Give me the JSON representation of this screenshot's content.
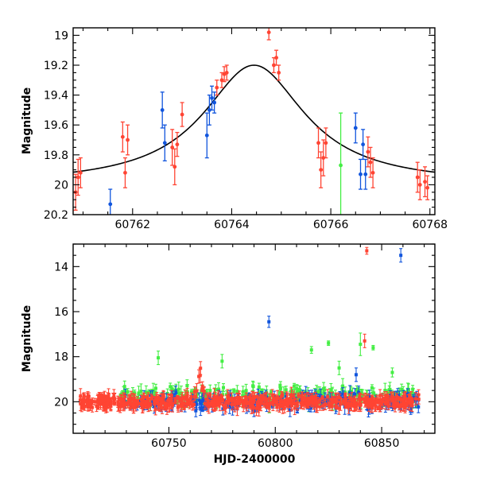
{
  "chart_data": [
    {
      "type": "scatter",
      "title": "",
      "xlabel": "",
      "ylabel": "Magnitude",
      "xlim": [
        60760.8,
        60768.1
      ],
      "ylim": [
        20.2,
        18.95
      ],
      "y_inverted": true,
      "x_ticks": [
        60762,
        60764,
        60766,
        60768
      ],
      "y_ticks": [
        19,
        19.2,
        19.4,
        19.6,
        19.8,
        20,
        20.2
      ],
      "model_curve": {
        "peak_x": 60764.45,
        "peak_mag": 19.2,
        "baseline_mag": 20.0,
        "x": [
          60760.8,
          60761.5,
          60762.0,
          60762.5,
          60763.0,
          60763.5,
          60764.0,
          60764.45,
          60765.0,
          60765.5,
          60766.0,
          60766.5,
          60767.0,
          60767.5,
          60768.1
        ],
        "y": [
          19.955,
          19.925,
          19.885,
          19.81,
          19.7,
          19.545,
          19.33,
          19.2,
          19.3,
          19.48,
          19.66,
          19.79,
          19.87,
          19.92,
          19.955
        ]
      },
      "series": [
        {
          "color": "#ff4433",
          "points": [
            {
              "x": 60760.85,
              "y": 20.05,
              "err": 0.12
            },
            {
              "x": 60760.9,
              "y": 19.95,
              "err": 0.12
            },
            {
              "x": 60760.95,
              "y": 19.92,
              "err": 0.1
            },
            {
              "x": 60761.8,
              "y": 19.68,
              "err": 0.1
            },
            {
              "x": 60761.85,
              "y": 19.92,
              "err": 0.1
            },
            {
              "x": 60761.9,
              "y": 19.7,
              "err": 0.1
            },
            {
              "x": 60762.8,
              "y": 19.75,
              "err": 0.12
            },
            {
              "x": 60762.85,
              "y": 19.88,
              "err": 0.12
            },
            {
              "x": 60762.9,
              "y": 19.73,
              "err": 0.08
            },
            {
              "x": 60763.0,
              "y": 19.53,
              "err": 0.08
            },
            {
              "x": 60763.7,
              "y": 19.35,
              "err": 0.05
            },
            {
              "x": 60763.8,
              "y": 19.3,
              "err": 0.05
            },
            {
              "x": 60763.85,
              "y": 19.26,
              "err": 0.05
            },
            {
              "x": 60763.9,
              "y": 19.25,
              "err": 0.05
            },
            {
              "x": 60764.75,
              "y": 18.98,
              "err": 0.05
            },
            {
              "x": 60764.85,
              "y": 19.2,
              "err": 0.05
            },
            {
              "x": 60764.9,
              "y": 19.15,
              "err": 0.05
            },
            {
              "x": 60764.95,
              "y": 19.25,
              "err": 0.05
            },
            {
              "x": 60765.75,
              "y": 19.72,
              "err": 0.1
            },
            {
              "x": 60765.8,
              "y": 19.9,
              "err": 0.12
            },
            {
              "x": 60765.85,
              "y": 19.82,
              "err": 0.12
            },
            {
              "x": 60765.9,
              "y": 19.72,
              "err": 0.1
            },
            {
              "x": 60766.75,
              "y": 19.78,
              "err": 0.1
            },
            {
              "x": 60766.8,
              "y": 19.85,
              "err": 0.1
            },
            {
              "x": 60766.85,
              "y": 19.92,
              "err": 0.1
            },
            {
              "x": 60767.75,
              "y": 19.95,
              "err": 0.1
            },
            {
              "x": 60767.8,
              "y": 20.0,
              "err": 0.1
            },
            {
              "x": 60767.9,
              "y": 19.98,
              "err": 0.1
            },
            {
              "x": 60767.95,
              "y": 20.02,
              "err": 0.08
            }
          ]
        },
        {
          "color": "#1155dd",
          "points": [
            {
              "x": 60761.55,
              "y": 20.13,
              "err": 0.1
            },
            {
              "x": 60762.6,
              "y": 19.5,
              "err": 0.12
            },
            {
              "x": 60762.65,
              "y": 19.72,
              "err": 0.12
            },
            {
              "x": 60763.5,
              "y": 19.67,
              "err": 0.15
            },
            {
              "x": 60763.55,
              "y": 19.5,
              "err": 0.1
            },
            {
              "x": 60763.6,
              "y": 19.42,
              "err": 0.08
            },
            {
              "x": 60763.65,
              "y": 19.45,
              "err": 0.07
            },
            {
              "x": 60766.5,
              "y": 19.62,
              "err": 0.1
            },
            {
              "x": 60766.6,
              "y": 19.93,
              "err": 0.1
            },
            {
              "x": 60766.65,
              "y": 19.73,
              "err": 0.1
            },
            {
              "x": 60766.7,
              "y": 19.93,
              "err": 0.1
            }
          ]
        },
        {
          "color": "#44ee44",
          "points": [
            {
              "x": 60766.2,
              "y": 19.87,
              "err": 0.35
            }
          ]
        }
      ]
    },
    {
      "type": "scatter",
      "title": "",
      "xlabel": "HJD-2400000",
      "ylabel": "Magnitude",
      "xlim": [
        60705,
        60875
      ],
      "ylim": [
        21.4,
        13
      ],
      "y_inverted": true,
      "x_ticks": [
        60750,
        60800,
        60850
      ],
      "y_ticks": [
        14,
        16,
        18,
        20
      ],
      "outliers": [
        {
          "color": "#ff4433",
          "x": 60843,
          "y": 13.3,
          "err": 0.15
        },
        {
          "color": "#1155dd",
          "x": 60859,
          "y": 13.5,
          "err": 0.3
        },
        {
          "color": "#1155dd",
          "x": 60797,
          "y": 16.45,
          "err": 0.25
        },
        {
          "color": "#44ee44",
          "x": 60840,
          "y": 17.45,
          "err": 0.5
        },
        {
          "color": "#ff4433",
          "x": 60842,
          "y": 17.3,
          "err": 0.3
        },
        {
          "color": "#44ee44",
          "x": 60817,
          "y": 17.7,
          "err": 0.15
        },
        {
          "color": "#44ee44",
          "x": 60825,
          "y": 17.4,
          "err": 0.1
        },
        {
          "color": "#44ee44",
          "x": 60846,
          "y": 17.6,
          "err": 0.1
        },
        {
          "color": "#44ee44",
          "x": 60775,
          "y": 18.2,
          "err": 0.3
        },
        {
          "color": "#44ee44",
          "x": 60745,
          "y": 18.05,
          "err": 0.3
        },
        {
          "color": "#1155dd",
          "x": 60838,
          "y": 18.8,
          "err": 0.3
        },
        {
          "color": "#44ee44",
          "x": 60855,
          "y": 18.7,
          "err": 0.2
        },
        {
          "color": "#44ee44",
          "x": 60830,
          "y": 18.5,
          "err": 0.3
        }
      ],
      "dense_bands": [
        {
          "color": "#44ee44",
          "x0": 60727,
          "x1": 60868,
          "y_center": 19.75,
          "spread": 0.5
        },
        {
          "color": "#1155dd",
          "x0": 60727,
          "x1": 60868,
          "y_center": 20.0,
          "spread": 0.45
        },
        {
          "color": "#ff4433",
          "x0": 60708,
          "x1": 60868,
          "y_center": 20.0,
          "spread": 0.35
        }
      ],
      "features": {
        "bump_x": 60764.45,
        "bump_peak_mag": 18.6,
        "baseline_mag": 20.0
      }
    }
  ]
}
